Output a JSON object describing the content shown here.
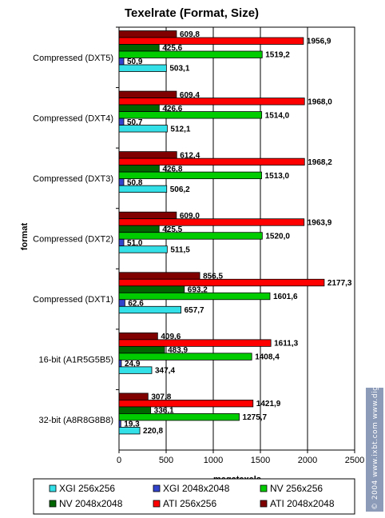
{
  "chart_data": {
    "type": "bar",
    "orientation": "horizontal",
    "title": "Texelrate (Format, Size)",
    "xlabel": "megatexels",
    "ylabel": "format",
    "xlim": [
      0,
      2500
    ],
    "xticks": [
      "0",
      "500",
      "1000",
      "1500",
      "2000",
      "2500"
    ],
    "grid": "vertical",
    "legend_position": "bottom",
    "categories": [
      "Compressed (DXT5)",
      "Compressed (DXT4)",
      "Compressed (DXT3)",
      "Compressed (DXT2)",
      "Compressed (DXT1)",
      "16-bit (A1R5G5B5)",
      "32-bit (A8R8G8B8)"
    ],
    "series": [
      {
        "name": "ATI 2048x2048",
        "color": "#800000",
        "values": [
          609.8,
          609.4,
          612.4,
          609.0,
          856.5,
          409.6,
          307.8
        ],
        "labels": [
          "609,8",
          "609,4",
          "612,4",
          "609,0",
          "856,5",
          "409,6",
          "307,8"
        ]
      },
      {
        "name": "ATI 256x256",
        "color": "#ff0000",
        "values": [
          1956.9,
          1968.0,
          1968.2,
          1963.9,
          2177.3,
          1611.3,
          1421.9
        ],
        "labels": [
          "1956,9",
          "1968,0",
          "1968,2",
          "1963,9",
          "2177,3",
          "1611,3",
          "1421,9"
        ]
      },
      {
        "name": "NV 2048x2048",
        "color": "#006600",
        "values": [
          425.6,
          426.6,
          426.8,
          425.5,
          693.2,
          483.9,
          336.1
        ],
        "labels": [
          "425,6",
          "426,6",
          "426,8",
          "425,5",
          "693,2",
          "483,9",
          "336,1"
        ]
      },
      {
        "name": "NV 256x256",
        "color": "#00cc00",
        "values": [
          1519.2,
          1514.0,
          1513.0,
          1520.0,
          1601.6,
          1408.4,
          1275.7
        ],
        "labels": [
          "1519,2",
          "1514,0",
          "1513,0",
          "1520,0",
          "1601,6",
          "1408,4",
          "1275,7"
        ]
      },
      {
        "name": "XGI 2048x2048",
        "color": "#3344cc",
        "values": [
          50.9,
          50.7,
          50.8,
          51.0,
          62.6,
          24.9,
          19.3
        ],
        "labels": [
          "50,9",
          "50,7",
          "50,8",
          "51,0",
          "62,6",
          "24,9",
          "19,3"
        ]
      },
      {
        "name": "XGI 256x256",
        "color": "#33e0e8",
        "values": [
          503.1,
          512.1,
          506.2,
          511.5,
          657.7,
          347.4,
          220.8
        ],
        "labels": [
          "503,1",
          "512,1",
          "506,2",
          "511,5",
          "657,7",
          "347,4",
          "220,8"
        ]
      }
    ],
    "legend_order": [
      "XGI 256x256",
      "XGI 2048x2048",
      "NV 256x256",
      "NV 2048x2048",
      "ATI 256x256",
      "ATI 2048x2048"
    ]
  },
  "watermark": {
    "text": "© 2004 www.ixbt.com  www.digit-life.com"
  }
}
